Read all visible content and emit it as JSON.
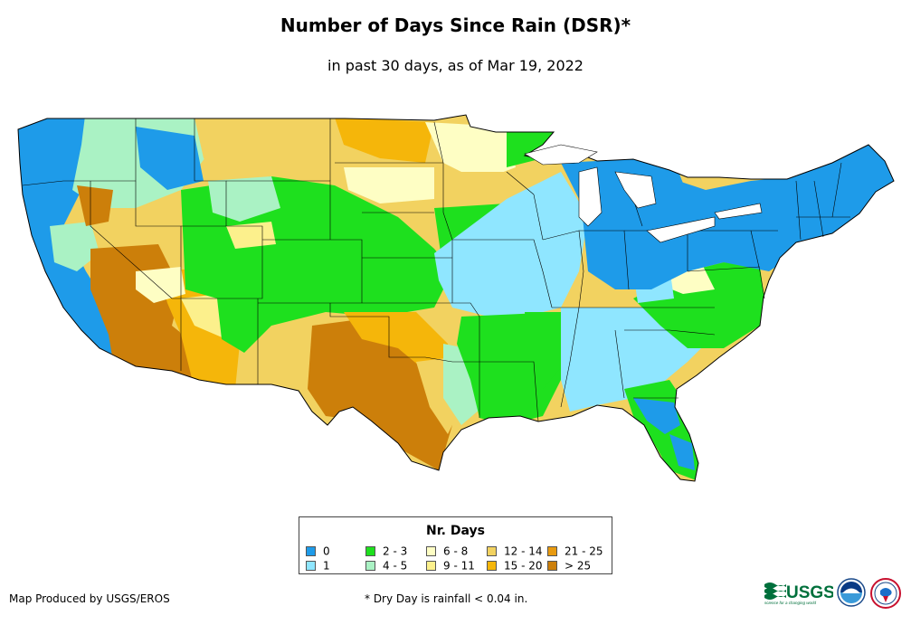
{
  "title": "Number of Days Since Rain (DSR)*",
  "subtitle": "in past 30 days, as of Mar 19, 2022",
  "legend": {
    "title": "Nr. Days",
    "items": [
      {
        "label": "0",
        "color": "#1e9be9"
      },
      {
        "label": "1",
        "color": "#8fe6ff"
      },
      {
        "label": "2 - 3",
        "color": "#1ee01e"
      },
      {
        "label": "4 - 5",
        "color": "#aaf2c4"
      },
      {
        "label": "6 - 8",
        "color": "#fefec4"
      },
      {
        "label": "9 - 11",
        "color": "#fcf08c"
      },
      {
        "label": "12 - 14",
        "color": "#f2d260"
      },
      {
        "label": "15 - 20",
        "color": "#f5b60a"
      },
      {
        "label": "21 - 25",
        "color": "#e89a10"
      },
      {
        "label": "> 25",
        "color": "#cc7f0a"
      }
    ]
  },
  "footer": {
    "producer": "Map Produced by USGS/EROS",
    "footnote": "* Dry Day is rainfall < 0.04 in."
  },
  "logos": {
    "usgs": {
      "text": "USGS",
      "tagline": "science for a changing world"
    },
    "noaa": "noaa-logo",
    "nws": "nws-logo"
  }
}
